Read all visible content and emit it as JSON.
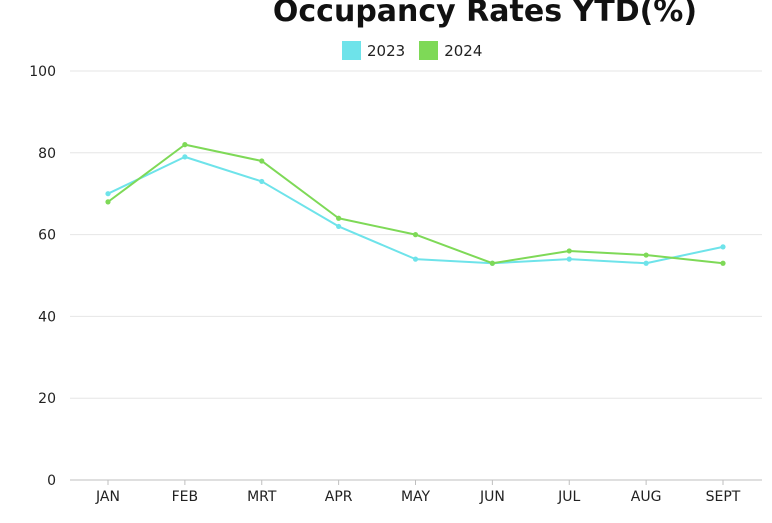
{
  "chart_data": {
    "type": "line",
    "title": "Occupancy Rates YTD(%)",
    "xlabel": "",
    "ylabel": "",
    "categories": [
      "JAN",
      "FEB",
      "MRT",
      "APR",
      "MAY",
      "JUN",
      "JUL",
      "AUG",
      "SEPT"
    ],
    "ylim": [
      0,
      100
    ],
    "yticks": [
      0,
      20,
      40,
      60,
      80,
      100
    ],
    "grid": true,
    "legend_position": "top-center",
    "series": [
      {
        "name": "2023",
        "color": "#6ee3ea",
        "values": [
          70,
          79,
          73,
          62,
          54,
          53,
          54,
          53,
          57
        ]
      },
      {
        "name": "2024",
        "color": "#7ed957",
        "values": [
          68,
          82,
          78,
          64,
          60,
          53,
          56,
          55,
          53
        ]
      }
    ]
  }
}
